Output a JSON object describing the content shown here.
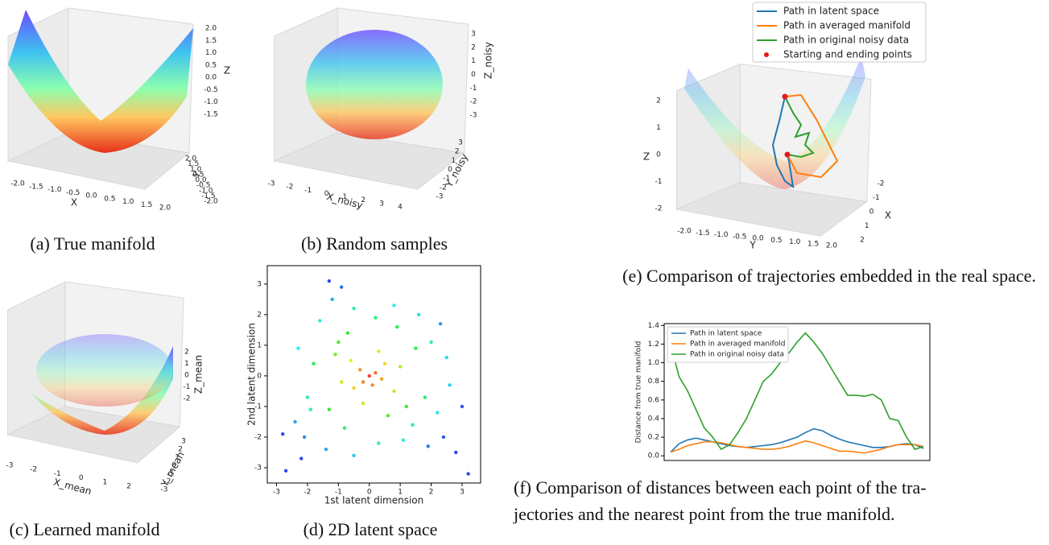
{
  "chart_data": [
    {
      "type": "surface3d",
      "caption": "(a) True manifold",
      "xlabel": "X",
      "ylabel": "Y",
      "zlabel": "Z",
      "xticks": [
        {
          "value": -2,
          "label": "-2.0"
        },
        -1.5,
        {
          "value": -1,
          "label": "-1.0"
        },
        -0.5,
        {
          "value": 0,
          "label": "0.0"
        },
        0.5,
        {
          "value": 1,
          "label": "1.0"
        },
        1.5,
        {
          "value": 2,
          "label": "2.0"
        }
      ],
      "yticks": [
        {
          "value": -2,
          "label": "-2.0"
        },
        -1.5,
        {
          "value": -1,
          "label": "-1.0"
        },
        -0.5,
        {
          "value": 0,
          "label": "0.0"
        },
        0.5,
        {
          "value": 1,
          "label": "1.0"
        },
        1.5,
        {
          "value": 2,
          "label": "2.0"
        }
      ],
      "zticks": [
        -1.5,
        {
          "value": -1,
          "label": "-1.0"
        },
        -0.5,
        {
          "value": 0,
          "label": "0.0"
        },
        0.5,
        {
          "value": 1,
          "label": "1.0"
        },
        1.5,
        {
          "value": 2,
          "label": "2.0"
        }
      ]
    },
    {
      "type": "scatter3d",
      "caption": "(b) Random samples",
      "xlabel": "X_noisy",
      "ylabel": "Y_noisy",
      "zlabel": "Z_noisy",
      "xticks": [
        -3,
        -2,
        -1,
        0,
        1,
        2,
        3,
        4
      ],
      "yticks": [
        -3,
        -2,
        -1,
        0,
        1,
        2,
        3
      ],
      "zticks": [
        -3,
        -2,
        -1,
        0,
        1,
        2,
        3
      ]
    },
    {
      "type": "scatter3d",
      "caption": "(c) Learned manifold",
      "xlabel": "X_mean",
      "ylabel": "Y_mean",
      "zlabel": "Z_mean",
      "xticks": [
        -3,
        -2,
        -1,
        0,
        1,
        2
      ],
      "yticks": [
        -3,
        -2,
        -1,
        0,
        1,
        2,
        3
      ],
      "zticks": [
        -2,
        -1,
        0,
        1,
        2
      ]
    },
    {
      "type": "scatter",
      "caption": "(d) 2D latent space",
      "xlabel": "1st latent dimension",
      "ylabel": "2nd latent dimension",
      "xlim": [
        -3.3,
        3.6
      ],
      "ylim": [
        -3.5,
        3.6
      ],
      "xticks": [
        -3,
        -2,
        -1,
        0,
        1,
        2,
        3
      ],
      "yticks": [
        -3,
        -2,
        -1,
        0,
        1,
        2,
        3
      ],
      "colormap": "rainbow_r",
      "x": [
        0,
        0.2,
        -0.3,
        0.1,
        -0.2,
        0.4,
        -0.5,
        0.5,
        -0.6,
        0.8,
        -0.9,
        0.3,
        -0.2,
        1.0,
        -1.1,
        1.2,
        -1.3,
        0.6,
        -0.7,
        1.5,
        -1.6,
        -1.2,
        -0.9,
        -1.3,
        -0.5,
        0.2,
        0.8,
        1.6,
        2.3,
        2.5,
        2.6,
        2.2,
        2.4,
        2.8,
        3.2,
        1.9,
        1.1,
        0.3,
        -0.5,
        -1.4,
        -2.1,
        -2.4,
        -2.8,
        -2.7,
        -2.0,
        -1.8,
        -2.3,
        -1.9,
        1.8,
        2.0,
        1.4,
        -0.8,
        0.9,
        -1.0,
        3.0,
        -2.2
      ],
      "y": [
        0,
        0.1,
        0.2,
        -0.3,
        -0.2,
        -0.1,
        -0.4,
        0.4,
        0.5,
        -0.5,
        -0.2,
        0.8,
        -0.9,
        0.3,
        0.7,
        -1.0,
        -1.1,
        -1.3,
        1.4,
        0.9,
        1.8,
        2.5,
        2.9,
        3.1,
        2.2,
        1.9,
        2.3,
        2.0,
        1.7,
        0.6,
        -0.3,
        -1.2,
        -2.0,
        -2.5,
        -3.2,
        -2.3,
        -2.1,
        -2.2,
        -2.6,
        -2.4,
        -2.0,
        -1.5,
        -1.9,
        -3.1,
        -0.7,
        0.4,
        0.9,
        -1.1,
        -0.7,
        1.1,
        -1.6,
        -1.7,
        1.6,
        1.1,
        -1.0,
        -2.7
      ]
    },
    {
      "type": "line3d",
      "caption": "(e) Comparison of trajectories embedded in the real space.",
      "xlabel": "X",
      "ylabel": "Y",
      "zlabel": "Z",
      "xticks": [
        -2,
        -1,
        0,
        1,
        2
      ],
      "yticks": [
        {
          "value": -2,
          "label": "-2.0"
        },
        -1.5,
        {
          "value": -1,
          "label": "-1.0"
        },
        -0.5,
        {
          "value": 0,
          "label": "0.0"
        },
        0.5,
        {
          "value": 1,
          "label": "1.0"
        },
        1.5,
        {
          "value": 2,
          "label": "2.0"
        }
      ],
      "zticks": [
        -2,
        -1,
        0,
        1,
        2
      ],
      "series": [
        {
          "name": "Path in latent space",
          "color": "#1f77b4"
        },
        {
          "name": "Path in averaged manifold",
          "color": "#ff7f0e"
        },
        {
          "name": "Path in original noisy data",
          "color": "#2ca02c"
        },
        {
          "name": "Starting and ending points",
          "color": "#e31a1c"
        }
      ]
    },
    {
      "type": "line",
      "caption": [
        "(f) Comparison of distances between each point of the tra-",
        "jectories and the nearest point from the true manifold."
      ],
      "ylabel": "Distance from true manifold",
      "ylim": [
        -0.05,
        1.42
      ],
      "yticks": [
        {
          "value": 0,
          "label": "0.0"
        },
        0.2,
        0.4,
        0.6,
        0.8,
        {
          "value": 1,
          "label": "1.0"
        },
        1.2,
        1.4
      ],
      "categories": [
        null,
        null,
        null,
        null,
        null,
        null,
        null,
        null,
        null,
        null,
        null,
        null,
        null,
        null,
        null,
        null,
        null,
        null,
        null,
        null,
        null,
        null,
        null,
        null,
        null,
        null,
        null,
        null,
        null,
        null,
        null
      ],
      "series": [
        {
          "name": "Path in latent space",
          "color": "#1f77b4",
          "values": [
            0.04,
            0.13,
            0.17,
            0.19,
            0.17,
            0.15,
            0.13,
            0.11,
            0.1,
            0.09,
            0.1,
            0.11,
            0.12,
            0.14,
            0.17,
            0.2,
            0.25,
            0.29,
            0.27,
            0.22,
            0.18,
            0.15,
            0.13,
            0.11,
            0.09,
            0.09,
            0.1,
            0.12,
            0.13,
            0.12,
            0.08
          ]
        },
        {
          "name": "Path in averaged manifold",
          "color": "#ff7f0e",
          "values": [
            0.04,
            0.07,
            0.11,
            0.13,
            0.15,
            0.15,
            0.14,
            0.12,
            0.1,
            0.09,
            0.08,
            0.07,
            0.07,
            0.08,
            0.1,
            0.13,
            0.16,
            0.14,
            0.11,
            0.08,
            0.05,
            0.05,
            0.04,
            0.03,
            0.05,
            0.07,
            0.1,
            0.12,
            0.12,
            0.12,
            0.1
          ]
        },
        {
          "name": "Path in original noisy data",
          "color": "#2ca02c",
          "values": [
            1.2,
            0.85,
            0.7,
            0.5,
            0.3,
            0.2,
            0.07,
            0.12,
            0.25,
            0.4,
            0.6,
            0.8,
            0.88,
            1.0,
            1.1,
            1.22,
            1.32,
            1.22,
            1.1,
            0.95,
            0.8,
            0.65,
            0.65,
            0.64,
            0.66,
            0.6,
            0.4,
            0.38,
            0.2,
            0.07,
            0.1
          ]
        }
      ]
    }
  ]
}
